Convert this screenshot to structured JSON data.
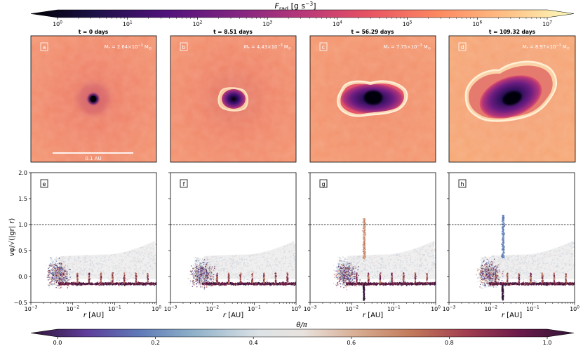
{
  "chart_data": {
    "type": "heatmap",
    "colorbar_top": {
      "label": "F_rad [g s⁻³]",
      "label_main": "F",
      "label_sub": "rad",
      "label_rest": " [g s",
      "label_sup": "−3",
      "label_close": "]",
      "scale": "log",
      "range": [
        1,
        10000000
      ],
      "ticks": [
        {
          "value": 1,
          "base": "10",
          "exp": "0"
        },
        {
          "value": 10,
          "base": "10",
          "exp": "1"
        },
        {
          "value": 100,
          "base": "10",
          "exp": "2"
        },
        {
          "value": 1000,
          "base": "10",
          "exp": "3"
        },
        {
          "value": 10000,
          "base": "10",
          "exp": "4"
        },
        {
          "value": 100000,
          "base": "10",
          "exp": "5"
        },
        {
          "value": 1000000,
          "base": "10",
          "exp": "6"
        },
        {
          "value": 10000000,
          "base": "10",
          "exp": "7"
        }
      ],
      "colormap": "magma"
    },
    "panels": [
      {
        "letter": "a",
        "title": "t = 0 days",
        "mass_text": "M* = 2.64×10⁻³ M⊙",
        "mass_sym": "M",
        "mass_sub": "*",
        "mass_val": " = 2.64×10",
        "mass_exp": "−3",
        "mass_unit": " M",
        "mass_unit_sub": "⊙",
        "scalebar": "0.1 AU",
        "cavity": "dot"
      },
      {
        "letter": "b",
        "title": "t = 8.51 days",
        "mass_text": "M* = 4.43×10⁻³ M⊙",
        "mass_sym": "M",
        "mass_sub": "*",
        "mass_val": " = 4.43×10",
        "mass_exp": "−3",
        "mass_unit": " M",
        "mass_unit_sub": "⊙",
        "cavity": "round"
      },
      {
        "letter": "c",
        "title": "t = 56.29 days",
        "mass_text": "M* = 7.75×10⁻³ M⊙",
        "mass_sym": "M",
        "mass_sub": "*",
        "mass_val": " = 7.75×10",
        "mass_exp": "−3",
        "mass_unit": " M",
        "mass_unit_sub": "⊙",
        "cavity": "bipolar"
      },
      {
        "letter": "d",
        "title": "t = 109.32 days",
        "mass_text": "M* = 8.97×10⁻³ M⊙",
        "mass_sym": "M",
        "mass_sub": "*",
        "mass_val": " = 8.97×10",
        "mass_exp": "−3",
        "mass_unit": " M",
        "mass_unit_sub": "⊙",
        "cavity": "large_bipolar"
      }
    ],
    "scatter_panels": [
      {
        "letter": "e",
        "spike": 0
      },
      {
        "letter": "f",
        "spike": 0
      },
      {
        "letter": "g",
        "spike": 1.13
      },
      {
        "letter": "h",
        "spike": 1.2
      }
    ],
    "scatter_axes": {
      "x_label_var": "r",
      "x_label_unit": " [AU]",
      "x_scale": "log",
      "x_range": [
        0.001,
        1
      ],
      "x_ticks": [
        {
          "value": 0.001,
          "base": "10",
          "exp": "−3"
        },
        {
          "value": 0.01,
          "base": "10",
          "exp": "−2"
        },
        {
          "value": 0.1,
          "base": "10",
          "exp": "−1"
        },
        {
          "value": 1,
          "base": "10",
          "exp": "0"
        }
      ],
      "y_label": "vφ/√(|gr| r)",
      "y_range": [
        -0.5,
        2.0
      ],
      "y_ticks": [
        "−0.5",
        "0.0",
        "0.5",
        "1.0",
        "1.5",
        "2.0"
      ],
      "y_tick_values": [
        -0.5,
        0.0,
        0.5,
        1.0,
        1.5,
        2.0
      ],
      "reference_line": 1.0
    },
    "colorbar_bottom": {
      "label": "θ/π",
      "range": [
        0.0,
        1.0
      ],
      "ticks": [
        "0.0",
        "0.2",
        "0.4",
        "0.6",
        "0.8",
        "1.0"
      ],
      "tick_values": [
        0.0,
        0.2,
        0.4,
        0.6,
        0.8,
        1.0
      ],
      "colormap": "twilight_shifted"
    }
  }
}
